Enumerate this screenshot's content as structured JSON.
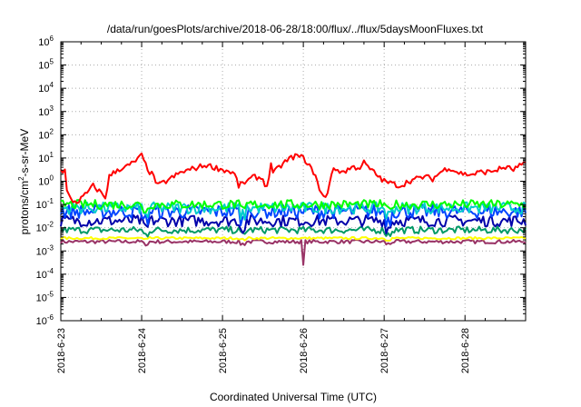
{
  "chart_data": {
    "type": "line",
    "title": "/data/run/goesPlots/archive/2018-06-28/18:00/flux/../flux/5daysMoonFluxes.txt",
    "xlabel": "Coordinated Universal Time (UTC)",
    "ylabel_main": "protons/cm",
    "ylabel_sup": "2",
    "ylabel_tail": "-s-sr-MeV",
    "yscale": "log",
    "ylim_exp": [
      -6,
      6
    ],
    "y_ticks": [
      {
        "exp": -6,
        "base": "10",
        "sup": "-6"
      },
      {
        "exp": -5,
        "base": "10",
        "sup": "-5"
      },
      {
        "exp": -4,
        "base": "10",
        "sup": "-4"
      },
      {
        "exp": -3,
        "base": "10",
        "sup": "-3"
      },
      {
        "exp": -2,
        "base": "10",
        "sup": "-2"
      },
      {
        "exp": -1,
        "base": "10",
        "sup": "-1"
      },
      {
        "exp": 0,
        "base": "10",
        "sup": "0"
      },
      {
        "exp": 1,
        "base": "10",
        "sup": "1"
      },
      {
        "exp": 2,
        "base": "10",
        "sup": "2"
      },
      {
        "exp": 3,
        "base": "10",
        "sup": "3"
      },
      {
        "exp": 4,
        "base": "10",
        "sup": "4"
      },
      {
        "exp": 5,
        "base": "10",
        "sup": "5"
      },
      {
        "exp": 6,
        "base": "10",
        "sup": "6"
      }
    ],
    "xlim_days": [
      0,
      5.75
    ],
    "x_ticks": [
      {
        "day": 0,
        "label": "2018-6-23"
      },
      {
        "day": 1,
        "label": "2018-6-24"
      },
      {
        "day": 2,
        "label": "2018-6-25"
      },
      {
        "day": 3,
        "label": "2018-6-26"
      },
      {
        "day": 4,
        "label": "2018-6-27"
      },
      {
        "day": 5,
        "label": "2018-6-28"
      }
    ],
    "grid": true,
    "series": [
      {
        "color": "#ff0000",
        "base_exp": 0.3,
        "noise": 0.12,
        "anchors": [
          [
            0,
            0.45
          ],
          [
            0.05,
            0.45
          ],
          [
            0.06,
            -0.3
          ],
          [
            0.12,
            -0.8
          ],
          [
            0.2,
            -0.9
          ],
          [
            0.3,
            -0.6
          ],
          [
            0.4,
            -0.2
          ],
          [
            0.5,
            -0.5
          ],
          [
            0.55,
            -0.7
          ],
          [
            0.6,
            0.2
          ],
          [
            0.7,
            0.5
          ],
          [
            0.8,
            0.6
          ],
          [
            0.9,
            0.8
          ],
          [
            1.0,
            1.1
          ],
          [
            1.05,
            0.7
          ],
          [
            1.1,
            0.4
          ],
          [
            1.15,
            0.2
          ],
          [
            1.2,
            -0.2
          ],
          [
            1.3,
            0.0
          ],
          [
            1.4,
            0.2
          ],
          [
            1.5,
            0.4
          ],
          [
            1.6,
            0.5
          ],
          [
            1.7,
            0.6
          ],
          [
            1.8,
            0.7
          ],
          [
            1.9,
            0.6
          ],
          [
            2.0,
            0.5
          ],
          [
            2.1,
            0.4
          ],
          [
            2.15,
            0.3
          ],
          [
            2.2,
            -0.2
          ],
          [
            2.3,
            0.0
          ],
          [
            2.4,
            0.2
          ],
          [
            2.5,
            0.1
          ],
          [
            2.55,
            -0.3
          ],
          [
            2.6,
            0.8
          ],
          [
            2.62,
            0.3
          ],
          [
            2.7,
            0.6
          ],
          [
            2.8,
            0.9
          ],
          [
            2.9,
            1.1
          ],
          [
            3.0,
            1.0
          ],
          [
            3.05,
            0.8
          ],
          [
            3.1,
            0.5
          ],
          [
            3.15,
            0.3
          ],
          [
            3.2,
            -0.4
          ],
          [
            3.25,
            -0.7
          ],
          [
            3.3,
            -0.5
          ],
          [
            3.35,
            0.4
          ],
          [
            3.4,
            0.5
          ],
          [
            3.5,
            0.4
          ],
          [
            3.6,
            0.6
          ],
          [
            3.7,
            0.6
          ],
          [
            3.75,
            0.8
          ],
          [
            3.8,
            0.6
          ],
          [
            3.9,
            0.3
          ],
          [
            4.0,
            0.0
          ],
          [
            4.1,
            -0.1
          ],
          [
            4.2,
            -0.2
          ],
          [
            4.3,
            0.0
          ],
          [
            4.4,
            0.1
          ],
          [
            4.5,
            0.2
          ],
          [
            4.6,
            0.1
          ],
          [
            4.7,
            0.4
          ],
          [
            4.8,
            0.6
          ],
          [
            4.9,
            0.4
          ],
          [
            5.0,
            0.3
          ],
          [
            5.1,
            0.3
          ],
          [
            5.2,
            0.4
          ],
          [
            5.3,
            0.4
          ],
          [
            5.4,
            0.5
          ],
          [
            5.5,
            0.6
          ],
          [
            5.6,
            0.5
          ],
          [
            5.7,
            0.7
          ],
          [
            5.75,
            0.7
          ]
        ]
      },
      {
        "color": "#00ff00",
        "base_exp": -1.0,
        "noise": 0.2
      },
      {
        "color": "#00cccc",
        "base_exp": -1.15,
        "noise": 0.25
      },
      {
        "color": "#0044ff",
        "base_exp": -1.3,
        "noise": 0.3
      },
      {
        "color": "#0000aa",
        "base_exp": -1.7,
        "noise": 0.25
      },
      {
        "color": "#009966",
        "base_exp": -2.1,
        "noise": 0.15
      },
      {
        "color": "#ffff00",
        "base_exp": -2.45,
        "noise": 0.05
      },
      {
        "color": "#993366",
        "base_exp": -2.6,
        "noise": 0.08
      }
    ]
  }
}
